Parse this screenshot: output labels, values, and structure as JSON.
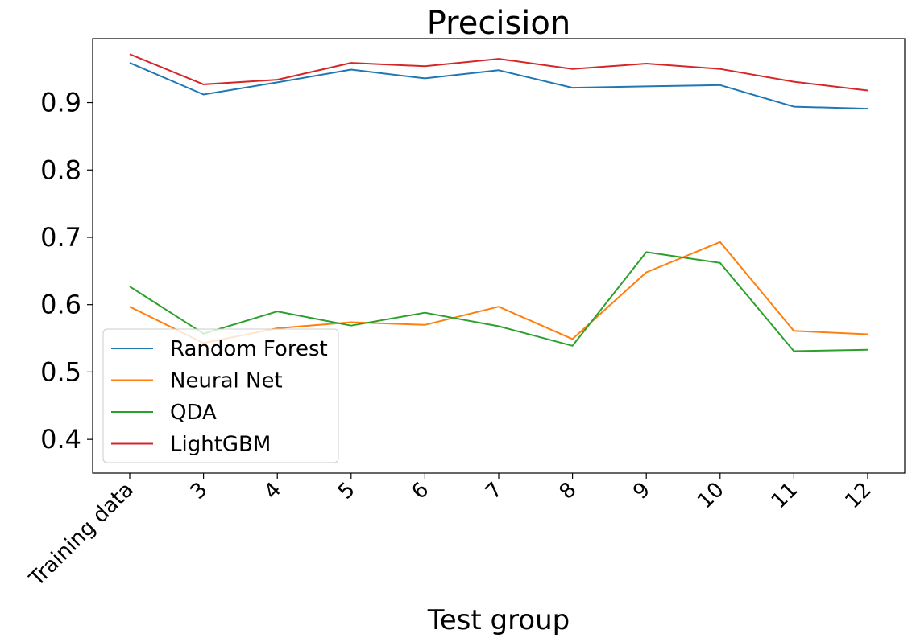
{
  "chart_data": {
    "type": "line",
    "title": "Precision",
    "xlabel": "Test group",
    "ylabel": "",
    "categories": [
      "Training data",
      "3",
      "4",
      "5",
      "6",
      "7",
      "8",
      "9",
      "10",
      "11",
      "12"
    ],
    "ylim": [
      0.35,
      0.995
    ],
    "yticks": [
      "0.4",
      "0.5",
      "0.6",
      "0.7",
      "0.8",
      "0.9"
    ],
    "grid": false,
    "legend_position": "lower-left",
    "series": [
      {
        "name": "Random Forest",
        "color": "#1f77b4",
        "values": [
          0.959,
          0.912,
          0.93,
          0.949,
          0.936,
          0.948,
          0.922,
          0.924,
          0.926,
          0.894,
          0.891
        ]
      },
      {
        "name": "Neural Net",
        "color": "#ff7f0e",
        "values": [
          0.597,
          0.543,
          0.565,
          0.574,
          0.57,
          0.597,
          0.549,
          0.648,
          0.693,
          0.561,
          0.556
        ]
      },
      {
        "name": "QDA",
        "color": "#2ca02c",
        "values": [
          0.627,
          0.557,
          0.59,
          0.569,
          0.588,
          0.568,
          0.539,
          0.678,
          0.662,
          0.531,
          0.533
        ]
      },
      {
        "name": "LightGBM",
        "color": "#d62728",
        "values": [
          0.972,
          0.927,
          0.934,
          0.959,
          0.954,
          0.965,
          0.95,
          0.958,
          0.95,
          0.931,
          0.918
        ]
      }
    ]
  }
}
